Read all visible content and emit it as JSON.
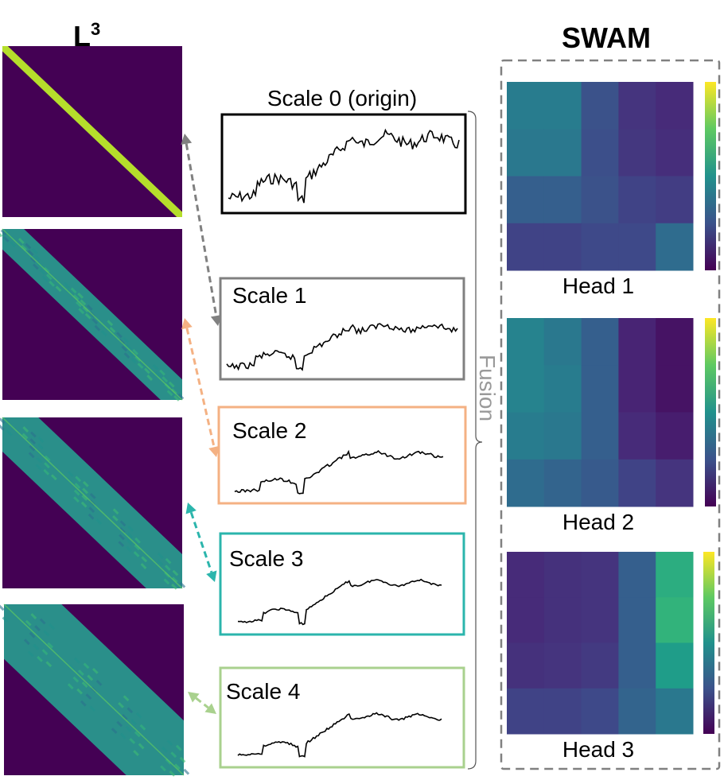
{
  "left_title": {
    "base": "L",
    "superscript": "3"
  },
  "right_title": "SWAM",
  "fusion_label": "Fusion",
  "scales": [
    {
      "label": "Scale 0 (origin)",
      "border_color": "#000000",
      "arrow_color": null
    },
    {
      "label": "Scale 1",
      "border_color": "#808080",
      "arrow_color": "#808080"
    },
    {
      "label": "Scale 2",
      "border_color": "#F4B183",
      "arrow_color": "#F4B183"
    },
    {
      "label": "Scale 3",
      "border_color": "#2BB5AC",
      "arrow_color": "#2BB5AC"
    },
    {
      "label": "Scale 4",
      "border_color": "#A9D18E",
      "arrow_color": "#A9D18E"
    }
  ],
  "attention_maps": [
    {
      "band_width": 0.03
    },
    {
      "band_width": 0.12
    },
    {
      "band_width": 0.2
    },
    {
      "band_width": 0.32
    }
  ],
  "heads": [
    {
      "label": "Head 1",
      "matrix": [
        [
          0.42,
          0.42,
          0.25,
          0.15,
          0.12
        ],
        [
          0.4,
          0.4,
          0.24,
          0.16,
          0.13
        ],
        [
          0.3,
          0.3,
          0.25,
          0.2,
          0.18
        ],
        [
          0.2,
          0.2,
          0.22,
          0.22,
          0.35
        ]
      ]
    },
    {
      "label": "Head 2",
      "matrix": [
        [
          0.45,
          0.4,
          0.3,
          0.1,
          0.05
        ],
        [
          0.45,
          0.42,
          0.3,
          0.1,
          0.05
        ],
        [
          0.42,
          0.4,
          0.3,
          0.12,
          0.08
        ],
        [
          0.35,
          0.32,
          0.28,
          0.2,
          0.15
        ]
      ]
    },
    {
      "label": "Head 3",
      "matrix": [
        [
          0.12,
          0.14,
          0.15,
          0.3,
          0.62
        ],
        [
          0.12,
          0.14,
          0.15,
          0.3,
          0.65
        ],
        [
          0.14,
          0.15,
          0.17,
          0.3,
          0.55
        ],
        [
          0.2,
          0.2,
          0.22,
          0.32,
          0.4
        ]
      ]
    }
  ],
  "colors": {
    "viridis_dark": "#440154",
    "viridis_yellow": "#FDE725",
    "dashed_border": "#808080",
    "bracket": "#555555"
  }
}
